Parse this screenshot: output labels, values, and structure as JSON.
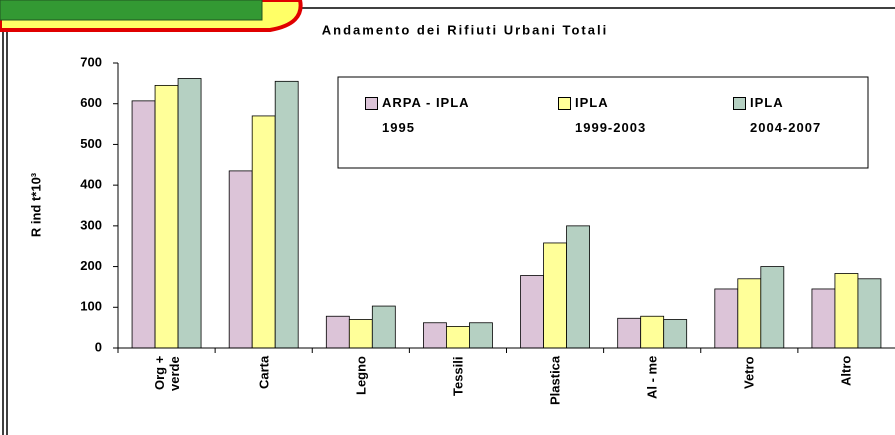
{
  "chart_data": {
    "type": "bar",
    "title": "Andamento dei Rifiuti Urbani Totali",
    "y_label": "R ind t*10³",
    "categories": [
      "Org +\nverde",
      "Carta",
      "Legno",
      "Tessili",
      "Plastica",
      "Al - me",
      "Vetro",
      "Altro"
    ],
    "series": [
      {
        "name": "ARPA - IPLA\n1995",
        "color": "#dcc4d8",
        "values": [
          607,
          435,
          78,
          62,
          178,
          73,
          145,
          145
        ]
      },
      {
        "name": "IPLA\n1999-2003",
        "color": "#ffff99",
        "values": [
          645,
          570,
          70,
          53,
          258,
          78,
          170,
          183
        ]
      },
      {
        "name": "IPLA\n2004-2007",
        "color": "#b5d0c2",
        "values": [
          662,
          655,
          103,
          62,
          300,
          70,
          200,
          170
        ]
      }
    ],
    "ylim": [
      0,
      700
    ],
    "yticks": [
      0,
      100,
      200,
      300,
      400,
      500,
      600,
      700
    ],
    "grid": false
  }
}
